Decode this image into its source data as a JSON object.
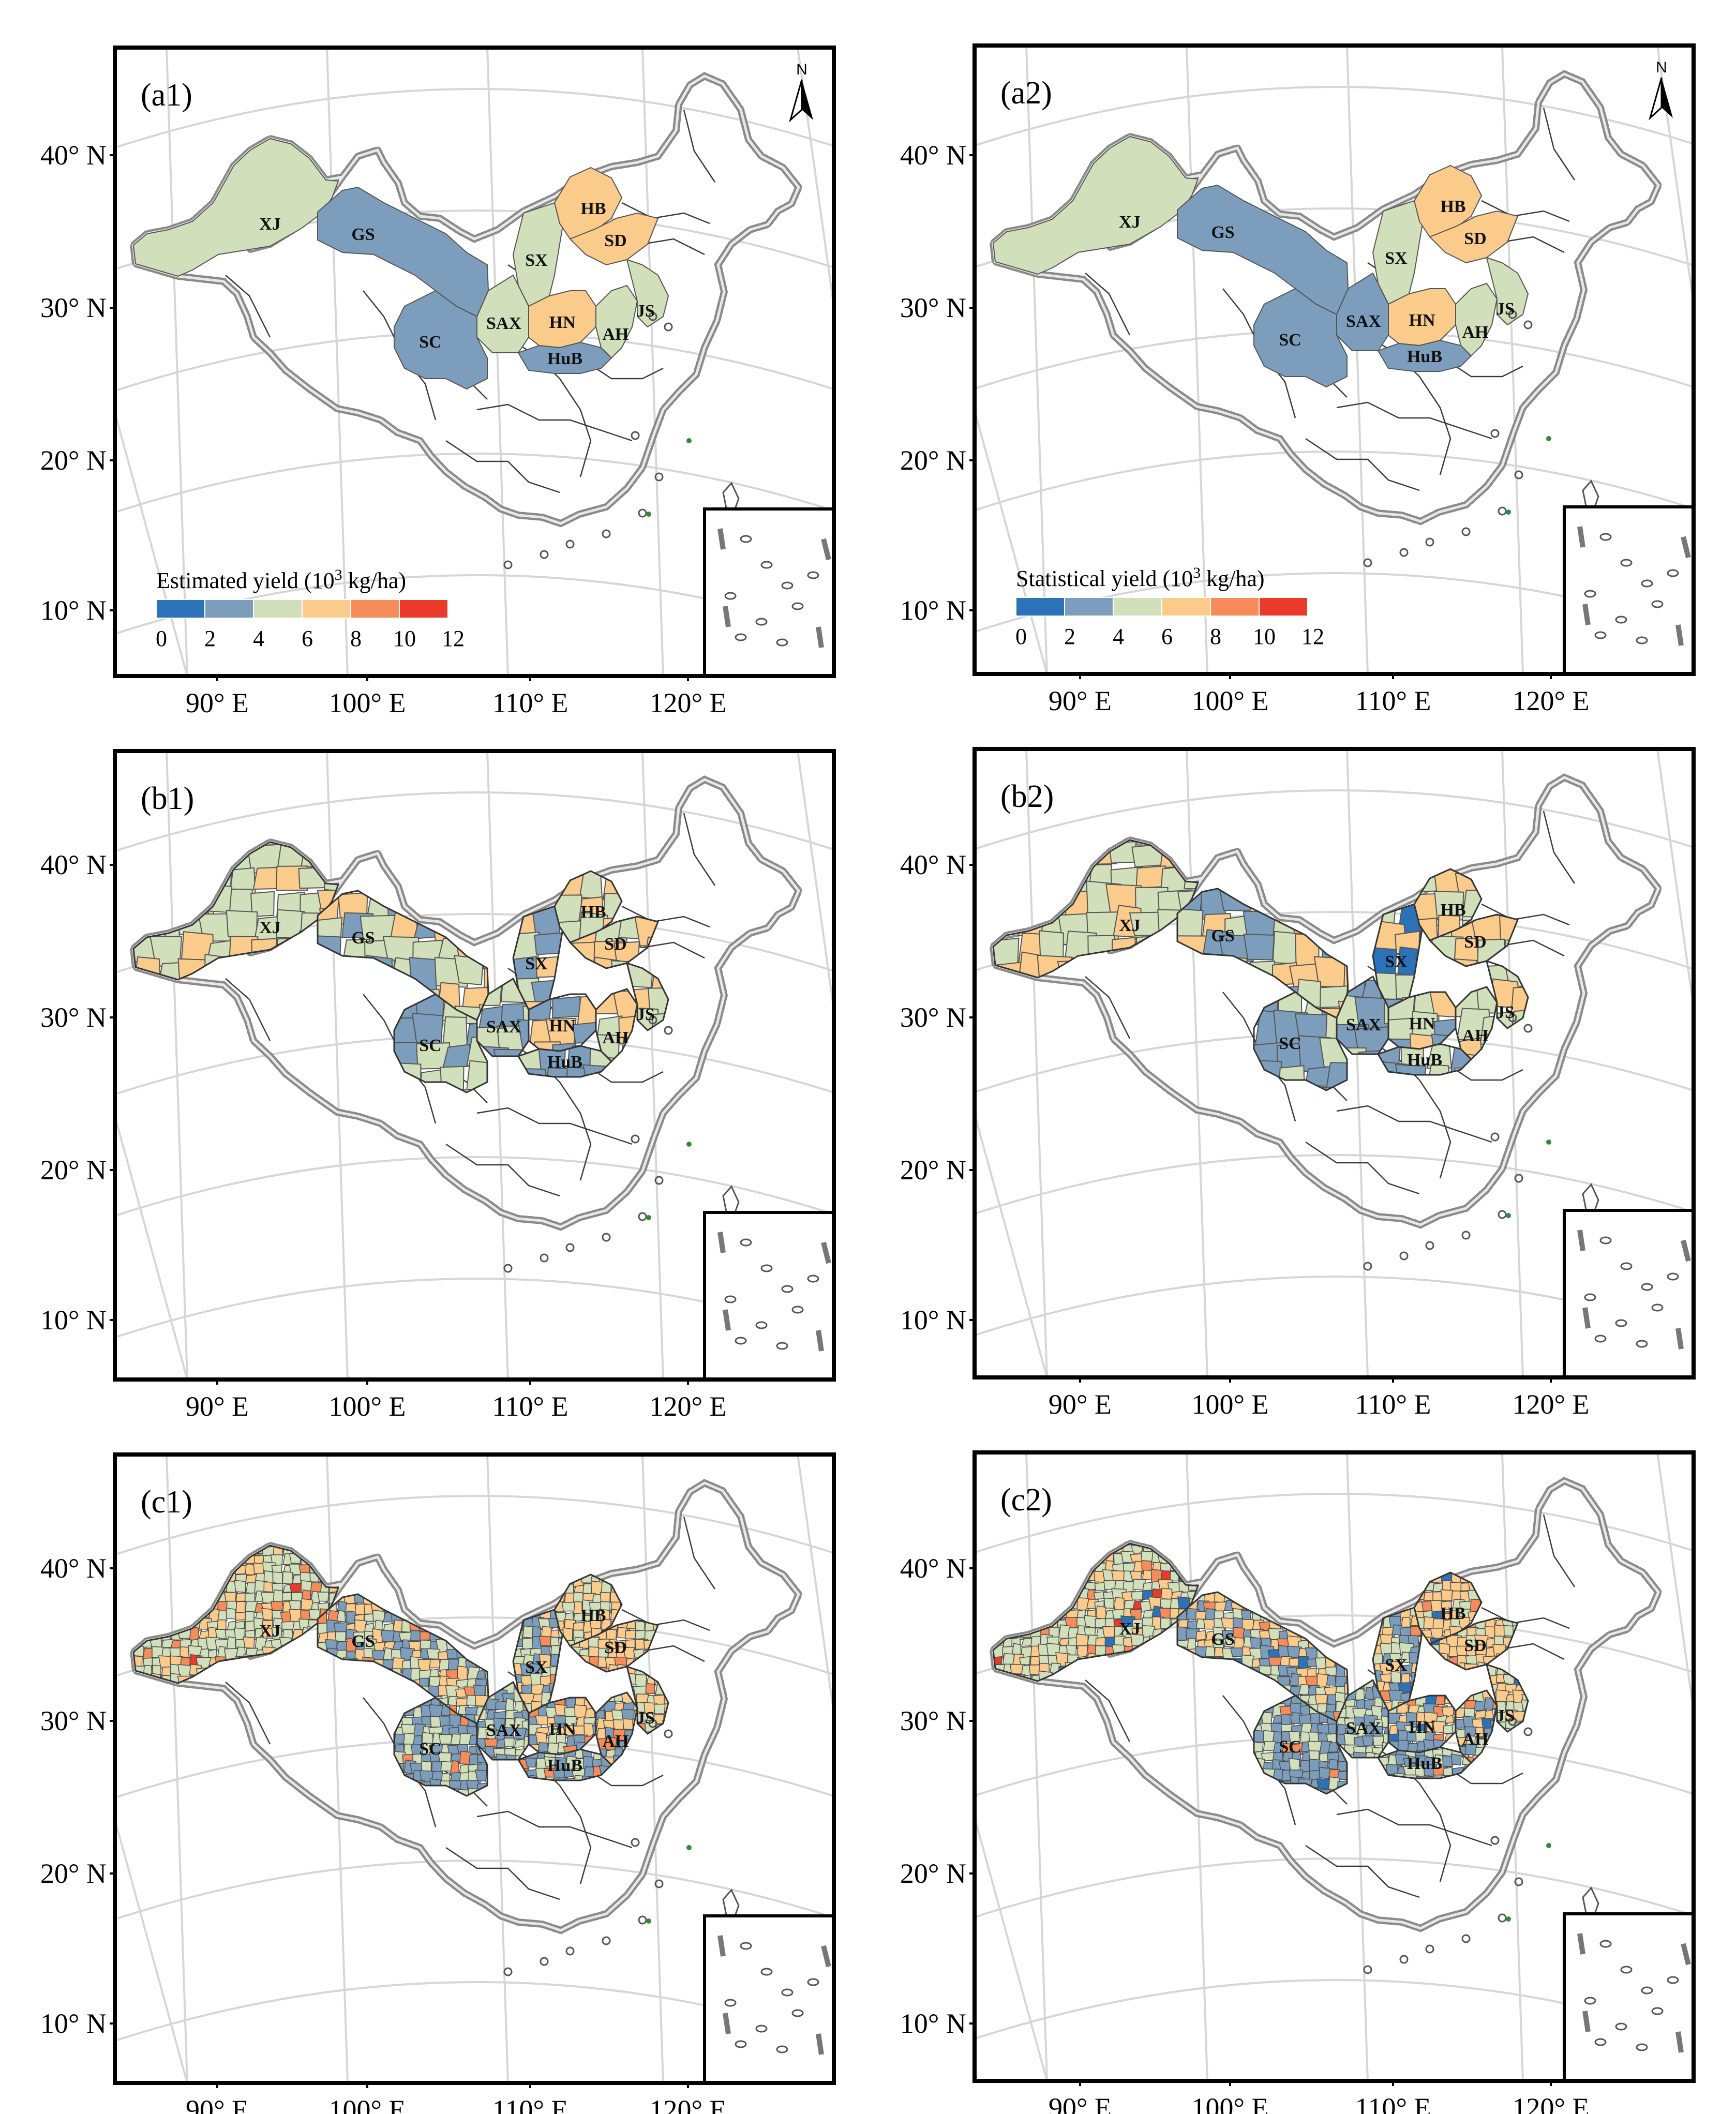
{
  "lat_ticks": [
    "40° N",
    "30° N",
    "20° N",
    "10° N"
  ],
  "lon_ticks": [
    "90° E",
    "100° E",
    "110° E",
    "120° E"
  ],
  "north_label": "N",
  "legend": {
    "estimated_title": "Estimated yield (10",
    "statistical_title": "Statistical yield (10",
    "superscript": "3",
    "units": " kg/ha)",
    "breaks": [
      "0",
      "2",
      "4",
      "6",
      "8",
      "10",
      "12"
    ],
    "colors": [
      "#2b72b8",
      "#7c9ebc",
      "#d2dfbb",
      "#fbcb8b",
      "#f58c5a",
      "#ea3a2c"
    ]
  },
  "province_labels": [
    "XJ",
    "GS",
    "SX",
    "HB",
    "SD",
    "SAX",
    "HN",
    "SC",
    "HuB",
    "AH",
    "JS"
  ],
  "panels": [
    {
      "id": "a1",
      "label": "(a1)",
      "level": "province",
      "kind": "estimated",
      "provinces": {
        "XJ": "4-6",
        "GS": "2-4",
        "SX": "4-6",
        "HB": "6-8",
        "SD": "6-8",
        "SAX": "4-6",
        "HN": "6-8",
        "SC": "2-4",
        "HuB": "2-4",
        "AH": "4-6",
        "JS": "4-6"
      }
    },
    {
      "id": "a2",
      "label": "(a2)",
      "level": "province",
      "kind": "statistical",
      "provinces": {
        "XJ": "4-6",
        "GS": "2-4",
        "SX": "4-6",
        "HB": "6-8",
        "SD": "6-8",
        "SAX": "2-4",
        "HN": "6-8",
        "SC": "2-4",
        "HuB": "2-4",
        "AH": "4-6",
        "JS": "4-6"
      }
    },
    {
      "id": "b1",
      "label": "(b1)",
      "level": "prefecture",
      "kind": "estimated"
    },
    {
      "id": "b2",
      "label": "(b2)",
      "level": "prefecture",
      "kind": "statistical"
    },
    {
      "id": "c1",
      "label": "(c1)",
      "level": "county",
      "kind": "estimated"
    },
    {
      "id": "c2",
      "label": "(c2)",
      "level": "county",
      "kind": "statistical"
    }
  ]
}
